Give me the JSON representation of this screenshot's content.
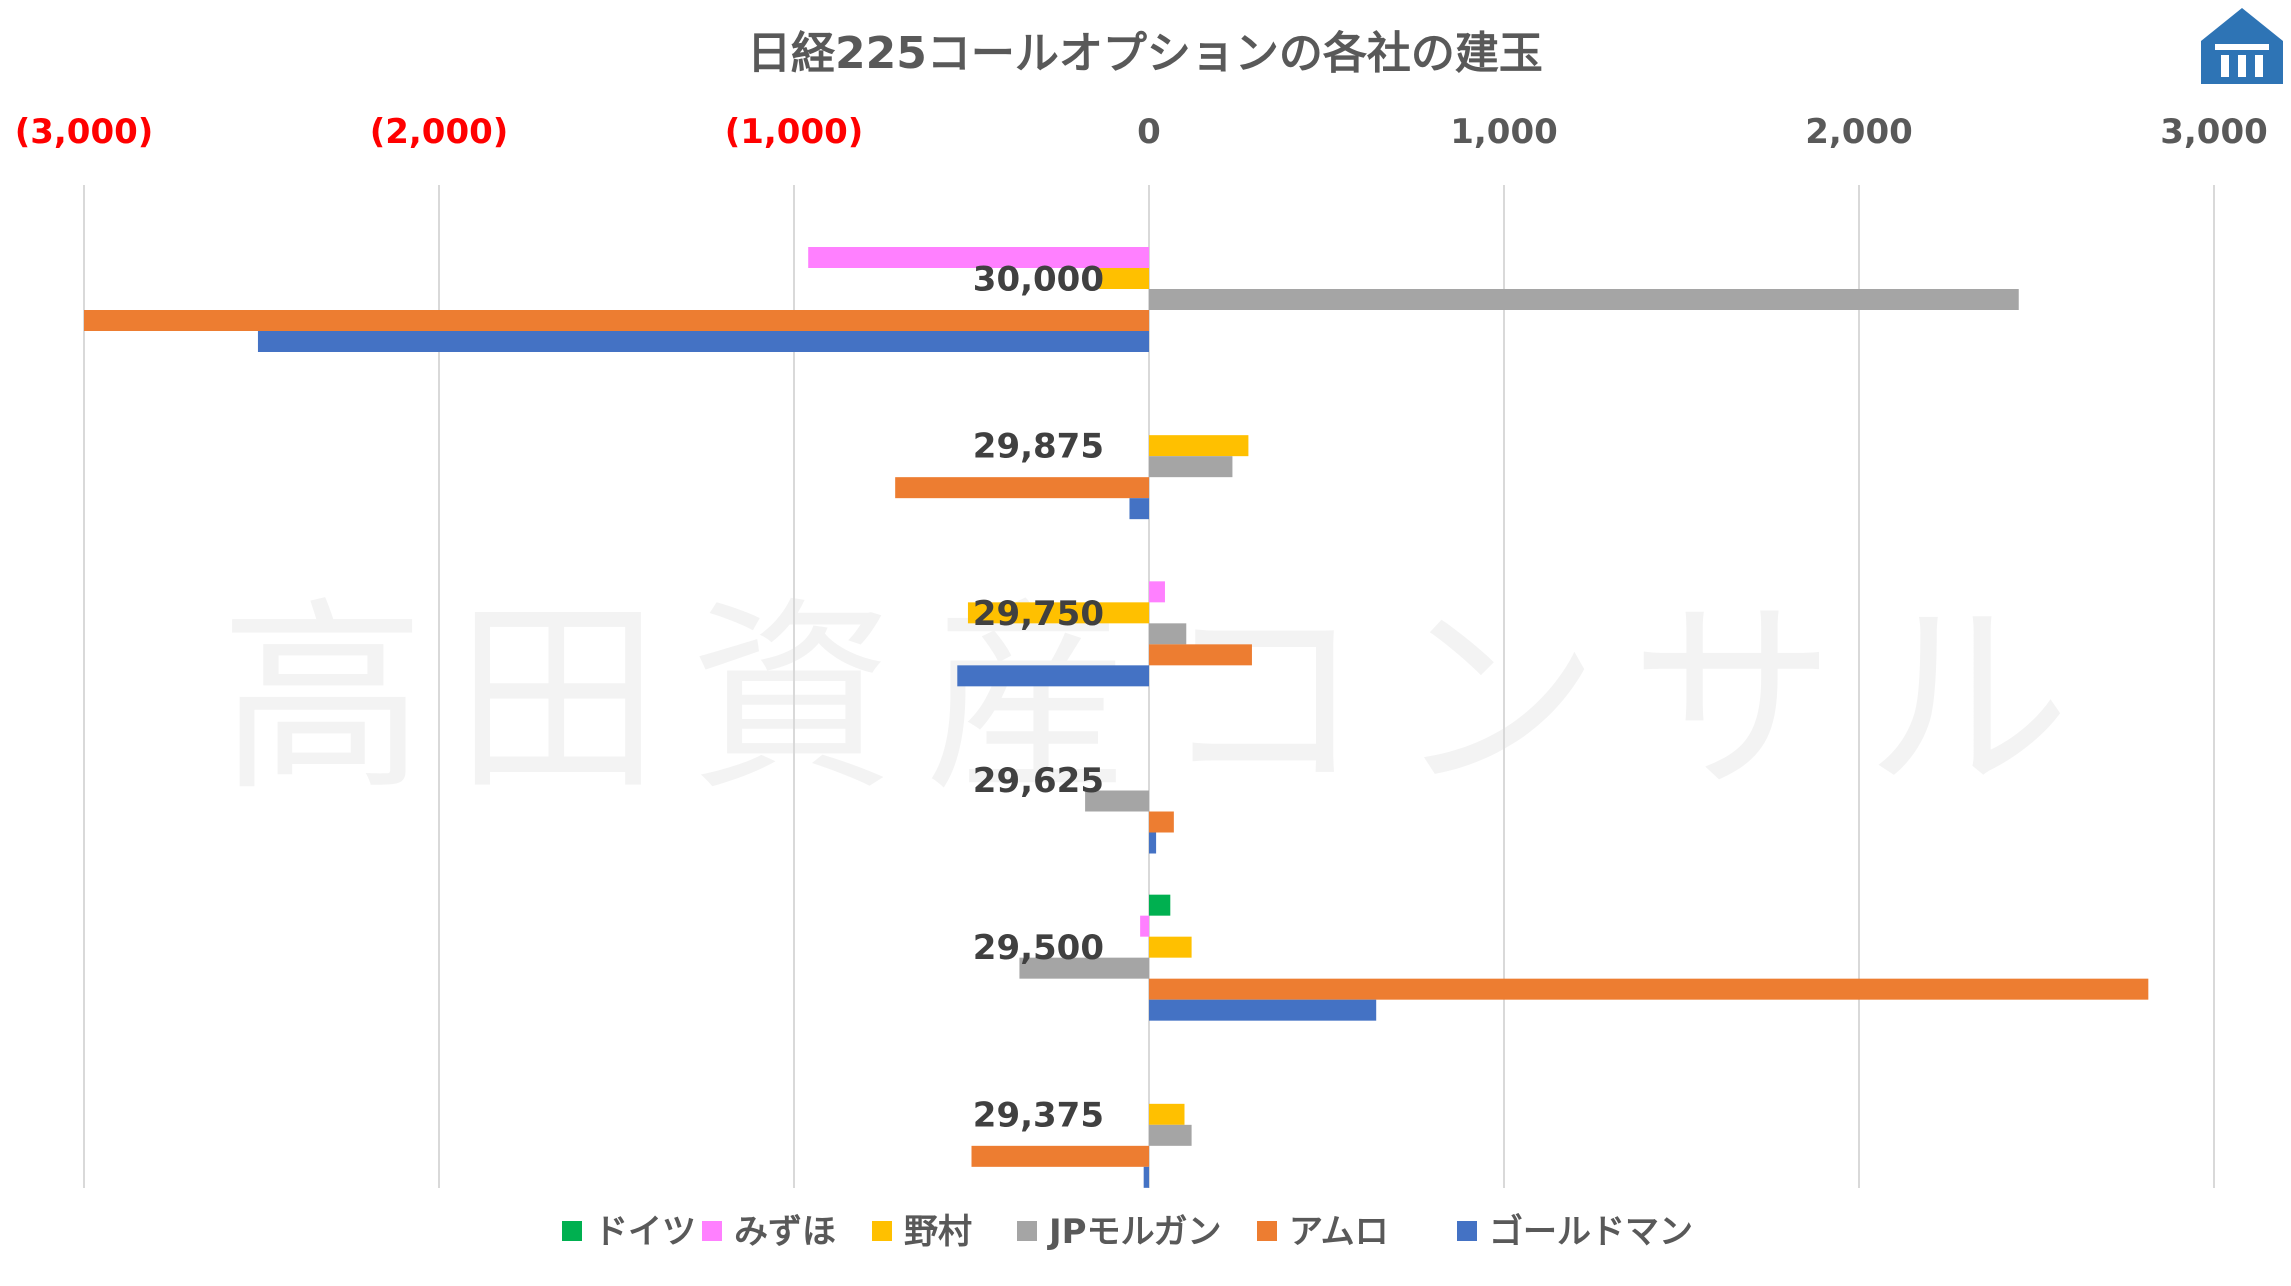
{
  "chart_data": {
    "type": "bar",
    "orientation": "horizontal",
    "title": "日経225コールオプションの各社の建玉",
    "watermark": "高田資産コンサル",
    "xlim": [
      -3000,
      3000
    ],
    "xticks": [
      -3000,
      -2000,
      -1000,
      0,
      1000,
      2000,
      3000
    ],
    "xtick_labels": [
      "(3,000)",
      "(2,000)",
      "(1,000)",
      "0",
      "1,000",
      "2,000",
      "3,000"
    ],
    "negative_tick_color": "#ff0000",
    "positive_tick_color": "#595959",
    "grid": true,
    "legend_position": "bottom",
    "categories": [
      "30,000",
      "29,875",
      "29,750",
      "29,625",
      "29,500",
      "29,375"
    ],
    "series": [
      {
        "name": "ドイツ",
        "color": "#00b050",
        "values": [
          0,
          0,
          0,
          0,
          60,
          0
        ]
      },
      {
        "name": "みずほ",
        "color": "#ff80ff",
        "values": [
          -960,
          0,
          45,
          0,
          -25,
          0
        ]
      },
      {
        "name": "野村",
        "color": "#ffc000",
        "values": [
          -140,
          280,
          -510,
          0,
          120,
          100
        ]
      },
      {
        "name": "JPモルガン",
        "color": "#a5a5a5",
        "values": [
          2450,
          235,
          105,
          -180,
          -365,
          120
        ]
      },
      {
        "name": "アムロ",
        "color": "#ed7d31",
        "values": [
          -3000,
          -715,
          290,
          70,
          2815,
          -500
        ]
      },
      {
        "name": "ゴールドマン",
        "color": "#4472c4",
        "values": [
          -2510,
          -55,
          -540,
          20,
          640,
          -15
        ]
      }
    ]
  }
}
